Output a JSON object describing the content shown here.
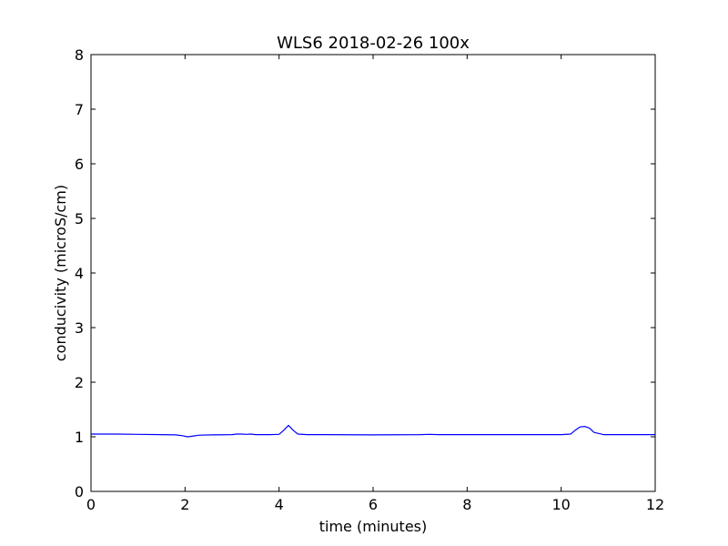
{
  "chart_data": {
    "type": "line",
    "title": "WLS6 2018-02-26 100x",
    "xlabel": "time (minutes)",
    "ylabel": "conducivity (microS/cm)",
    "xlim": [
      0,
      12
    ],
    "ylim": [
      0,
      8
    ],
    "xticks": [
      "0",
      "2",
      "4",
      "6",
      "8",
      "10",
      "12"
    ],
    "yticks": [
      "0",
      "1",
      "2",
      "3",
      "4",
      "5",
      "6",
      "7",
      "8"
    ],
    "grid": false,
    "series": [
      {
        "color": "#0000ff",
        "x": [
          0,
          0.5,
          1,
          1.5,
          1.8,
          1.95,
          2.05,
          2.15,
          2.3,
          2.6,
          3.0,
          3.1,
          3.2,
          3.3,
          3.4,
          3.5,
          3.8,
          4.0,
          4.1,
          4.2,
          4.3,
          4.4,
          4.6,
          5.0,
          6.0,
          7.0,
          7.2,
          7.4,
          8.0,
          9.0,
          10.0,
          10.2,
          10.3,
          10.4,
          10.5,
          10.6,
          10.7,
          10.9,
          11.5,
          12.0
        ],
        "y": [
          1.05,
          1.05,
          1.045,
          1.04,
          1.035,
          1.02,
          1.0,
          1.01,
          1.03,
          1.035,
          1.04,
          1.05,
          1.05,
          1.045,
          1.05,
          1.04,
          1.04,
          1.045,
          1.12,
          1.21,
          1.12,
          1.05,
          1.04,
          1.04,
          1.035,
          1.04,
          1.045,
          1.04,
          1.04,
          1.04,
          1.04,
          1.05,
          1.12,
          1.18,
          1.19,
          1.16,
          1.08,
          1.04,
          1.04,
          1.04
        ]
      }
    ]
  }
}
